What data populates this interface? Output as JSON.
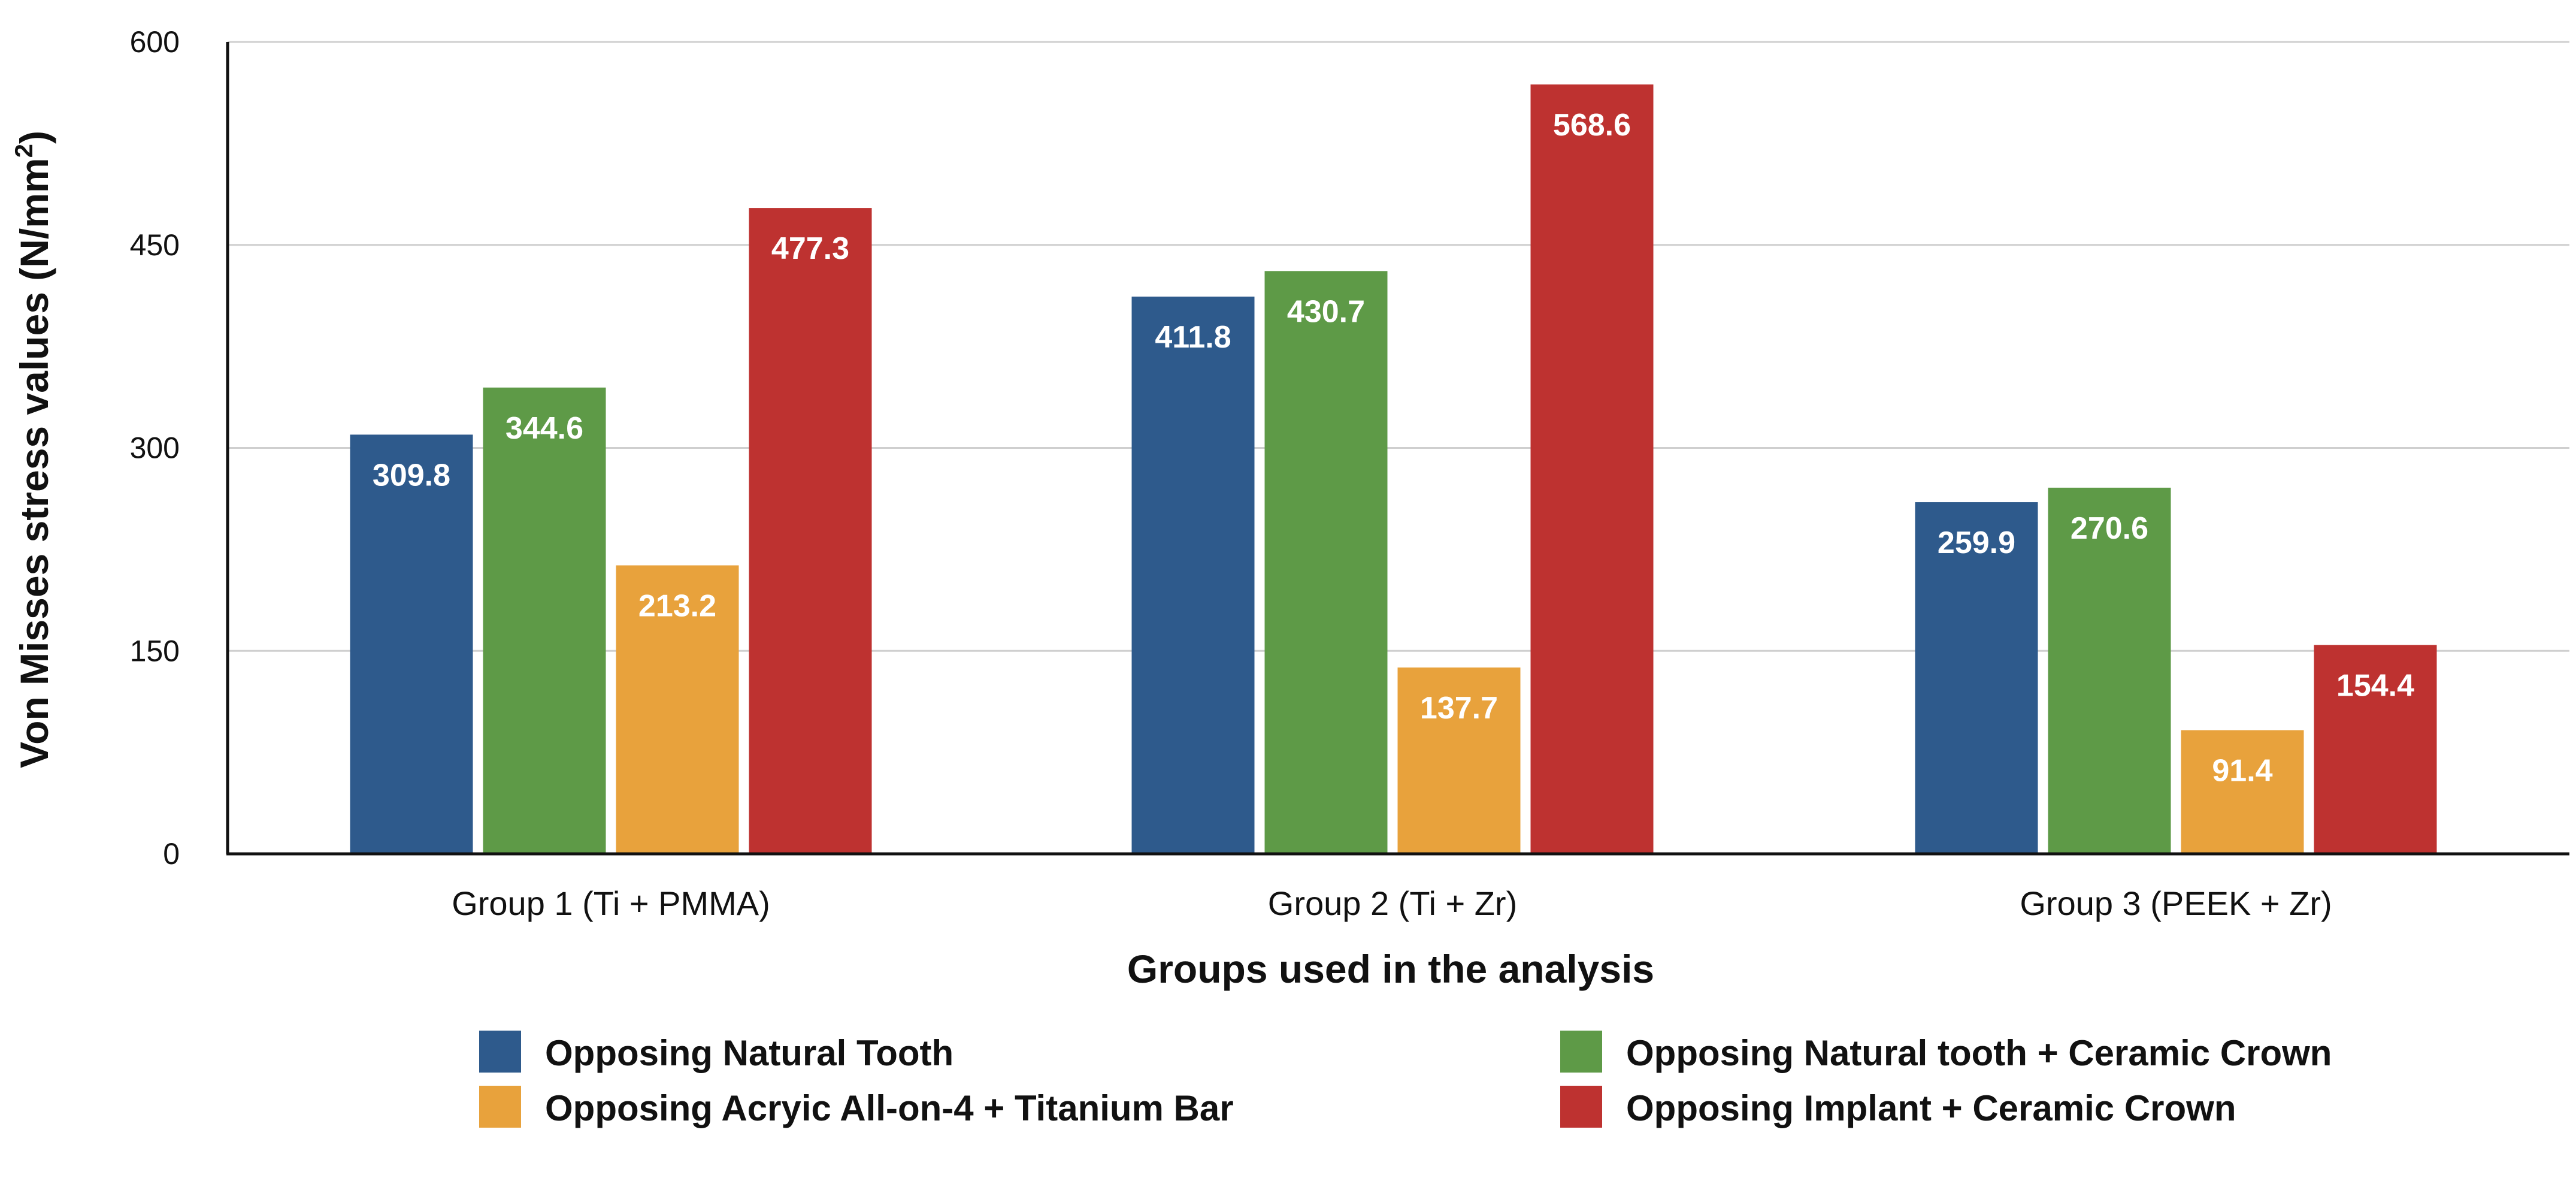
{
  "chart_data": {
    "type": "bar",
    "title": "",
    "xlabel": "Groups used in the analysis",
    "ylabel": "Von Misses stress values (N/mm",
    "ylabel_superscript": "2",
    "ylabel_suffix": ")",
    "ylim": [
      0,
      600
    ],
    "yticks": [
      0,
      150,
      300,
      450,
      600
    ],
    "ytick_labels": [
      "0",
      "150",
      "300",
      "450",
      "600"
    ],
    "grid": true,
    "legend_position": "bottom",
    "categories": [
      "Group 1 (Ti + PMMA)",
      "Group 2 (Ti + Zr)",
      "Group 3 (PEEK + Zr)"
    ],
    "series": [
      {
        "name": "Opposing Natural Tooth",
        "color": "#2E5A8C",
        "values": [
          309.8,
          411.8,
          259.9
        ],
        "labels": [
          "309.8",
          "411.8",
          "259.9"
        ]
      },
      {
        "name": "Opposing Natural tooth + Ceramic Crown",
        "color": "#5E9A47",
        "values": [
          344.6,
          430.7,
          270.6
        ],
        "labels": [
          "344.6",
          "430.7",
          "270.6"
        ]
      },
      {
        "name": "Opposing Acryic All-on-4 + Titanium Bar",
        "color": "#E8A23C",
        "values": [
          213.2,
          137.7,
          91.4
        ],
        "labels": [
          "213.2",
          "137.7",
          "91.4"
        ]
      },
      {
        "name": "Opposing Implant + Ceramic Crown",
        "color": "#BE3230",
        "values": [
          477.3,
          568.6,
          154.4
        ],
        "labels": [
          "477.3",
          "568.6",
          "154.4"
        ]
      }
    ]
  }
}
